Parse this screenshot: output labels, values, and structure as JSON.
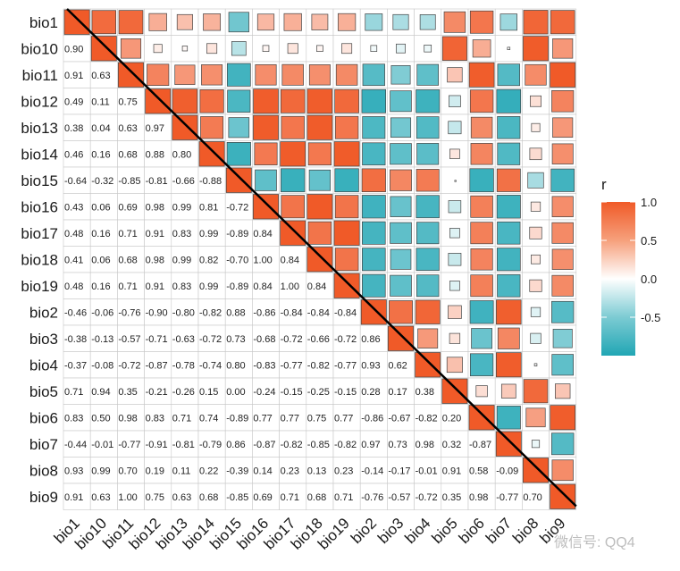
{
  "chart_data": {
    "type": "heatmap",
    "variables": [
      "bio1",
      "bio10",
      "bio11",
      "bio12",
      "bio13",
      "bio14",
      "bio15",
      "bio16",
      "bio17",
      "bio18",
      "bio19",
      "bio2",
      "bio3",
      "bio4",
      "bio5",
      "bio6",
      "bio7",
      "bio8",
      "bio9"
    ],
    "lower_labels": [
      [],
      [
        "0.90"
      ],
      [
        "0.91",
        "0.63"
      ],
      [
        "0.49",
        "0.11",
        "0.75"
      ],
      [
        "0.38",
        "0.04",
        "0.63",
        "0.97"
      ],
      [
        "0.46",
        "0.16",
        "0.68",
        "0.88",
        "0.80"
      ],
      [
        "-0.64",
        "-0.32",
        "-0.85",
        "-0.81",
        "-0.66",
        "-0.88"
      ],
      [
        "0.43",
        "0.06",
        "0.69",
        "0.98",
        "0.99",
        "0.81",
        "-0.72"
      ],
      [
        "0.48",
        "0.16",
        "0.71",
        "0.91",
        "0.83",
        "0.99",
        "-0.89",
        "0.84"
      ],
      [
        "0.41",
        "0.06",
        "0.68",
        "0.98",
        "0.99",
        "0.82",
        "-0.70",
        "1.00",
        "0.84"
      ],
      [
        "0.48",
        "0.16",
        "0.71",
        "0.91",
        "0.83",
        "0.99",
        "-0.89",
        "0.84",
        "1.00",
        "0.84"
      ],
      [
        "-0.46",
        "-0.06",
        "-0.76",
        "-0.90",
        "-0.80",
        "-0.82",
        "0.88",
        "-0.86",
        "-0.84",
        "-0.84",
        "-0.84"
      ],
      [
        "-0.38",
        "-0.13",
        "-0.57",
        "-0.71",
        "-0.63",
        "-0.72",
        "0.73",
        "-0.68",
        "-0.72",
        "-0.66",
        "-0.72",
        "0.86"
      ],
      [
        "-0.37",
        "-0.08",
        "-0.72",
        "-0.87",
        "-0.78",
        "-0.74",
        "0.80",
        "-0.83",
        "-0.77",
        "-0.82",
        "-0.77",
        "0.93",
        "0.62"
      ],
      [
        "0.71",
        "0.94",
        "0.35",
        "-0.21",
        "-0.26",
        "0.15",
        "0.00",
        "-0.24",
        "-0.15",
        "-0.25",
        "-0.15",
        "0.28",
        "0.17",
        "0.38"
      ],
      [
        "0.83",
        "0.50",
        "0.98",
        "0.83",
        "0.71",
        "0.74",
        "-0.89",
        "0.77",
        "0.77",
        "0.75",
        "0.77",
        "-0.86",
        "-0.67",
        "-0.82",
        "0.20"
      ],
      [
        "-0.44",
        "-0.01",
        "-0.77",
        "-0.91",
        "-0.81",
        "-0.79",
        "0.86",
        "-0.87",
        "-0.82",
        "-0.85",
        "-0.82",
        "0.97",
        "0.73",
        "0.98",
        "0.32",
        "-0.87"
      ],
      [
        "0.93",
        "0.99",
        "0.70",
        "0.19",
        "0.11",
        "0.22",
        "-0.39",
        "0.14",
        "0.23",
        "0.13",
        "0.23",
        "-0.14",
        "-0.17",
        "-0.01",
        "0.91",
        "0.58",
        "-0.09"
      ],
      [
        "0.91",
        "0.63",
        "1.00",
        "0.75",
        "0.63",
        "0.68",
        "-0.85",
        "0.69",
        "0.71",
        "0.68",
        "0.71",
        "-0.76",
        "-0.57",
        "-0.72",
        "0.35",
        "0.98",
        "-0.77",
        "0.70"
      ]
    ],
    "legend": {
      "title": "r",
      "ticks": [
        "1.0",
        "0.5",
        "0.0",
        "-0.5"
      ],
      "tick_values": [
        1.0,
        0.5,
        0.0,
        -0.5
      ],
      "range": [
        -1,
        1
      ]
    },
    "colors": {
      "positive": "#f05a28",
      "zero": "#ffffff",
      "negative": "#21a6b4"
    }
  },
  "watermark": "微信号: QQ4"
}
